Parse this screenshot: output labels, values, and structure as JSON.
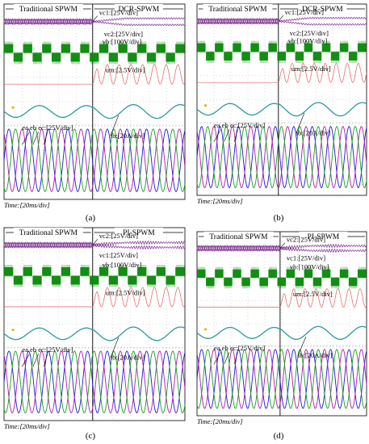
{
  "chart_data": [
    {
      "type": "line",
      "panel_label": "(a)",
      "methods": {
        "left": "Traditional SPWM",
        "right": "DCR-SPWM"
      },
      "time_scale": "Time:[20ms/div]",
      "annotations": [
        {
          "key": "vc1",
          "text": "vc1:[25V/div]"
        },
        {
          "key": "vc2",
          "text": "vc2:[25V/div]"
        },
        {
          "key": "vb",
          "text": "vb:[100V/div]"
        },
        {
          "key": "um",
          "text": "um:[2.5V/div]"
        },
        {
          "key": "abc",
          "text": "ea eb ec:[25V/div]"
        },
        {
          "key": "ib",
          "text": "ib:[20A/div]"
        }
      ]
    },
    {
      "type": "line",
      "panel_label": "(b)",
      "methods": {
        "left": "Traditional SPWM",
        "right": "DCR-SPWM"
      },
      "time_scale": "Time:[20ms/div]",
      "annotations": [
        {
          "key": "vc1",
          "text": "vc1:[25V/div]"
        },
        {
          "key": "vc2",
          "text": "vc2:[25V/div]"
        },
        {
          "key": "vb",
          "text": "vb:[100V/div]"
        },
        {
          "key": "um",
          "text": "um:[2.5V/div]"
        },
        {
          "key": "abc",
          "text": "ea eb ec:[25V/div]"
        },
        {
          "key": "ib",
          "text": "ib:[20A/div]"
        }
      ]
    },
    {
      "type": "line",
      "panel_label": "(c)",
      "methods": {
        "left": "Traditional SPWM",
        "right": "PI-SPWM"
      },
      "time_scale": "Time:[20ms/div]",
      "annotations": [
        {
          "key": "vc2",
          "text": "vc2:[25V/div]"
        },
        {
          "key": "vc1",
          "text": "vc1:[25V/div]"
        },
        {
          "key": "vb",
          "text": "vb:[100V/div]"
        },
        {
          "key": "um",
          "text": "um:[2.5V/div]"
        },
        {
          "key": "abc",
          "text": "ea eb ec:[25V/div]"
        },
        {
          "key": "ib",
          "text": "ib:[20A/div]"
        }
      ]
    },
    {
      "type": "line",
      "panel_label": "(d)",
      "methods": {
        "left": "Traditional SPWM",
        "right": "PI-SPWM"
      },
      "time_scale": "Time:[20ms/div]",
      "annotations": [
        {
          "key": "vc2",
          "text": "vc2:[25V/div]"
        },
        {
          "key": "vc1",
          "text": "vc1:[25V/div]"
        },
        {
          "key": "vb",
          "text": "vb:[100V/div]"
        },
        {
          "key": "um",
          "text": "um:[2.5V/div]"
        },
        {
          "key": "abc",
          "text": "ea eb ec:[25V/div]"
        },
        {
          "key": "ib",
          "text": "ib:[20A/div]"
        }
      ]
    }
  ],
  "colors": {
    "capacitor": "#7a2a8e",
    "bridge": "#0a8a0a",
    "modulation": "#e06060",
    "current": "#2a9a9a",
    "phase_a": "#1a1ad0",
    "phase_b": "#b01ab0",
    "phase_c": "#18a018",
    "grid": "#909090",
    "frame": "#000000"
  }
}
